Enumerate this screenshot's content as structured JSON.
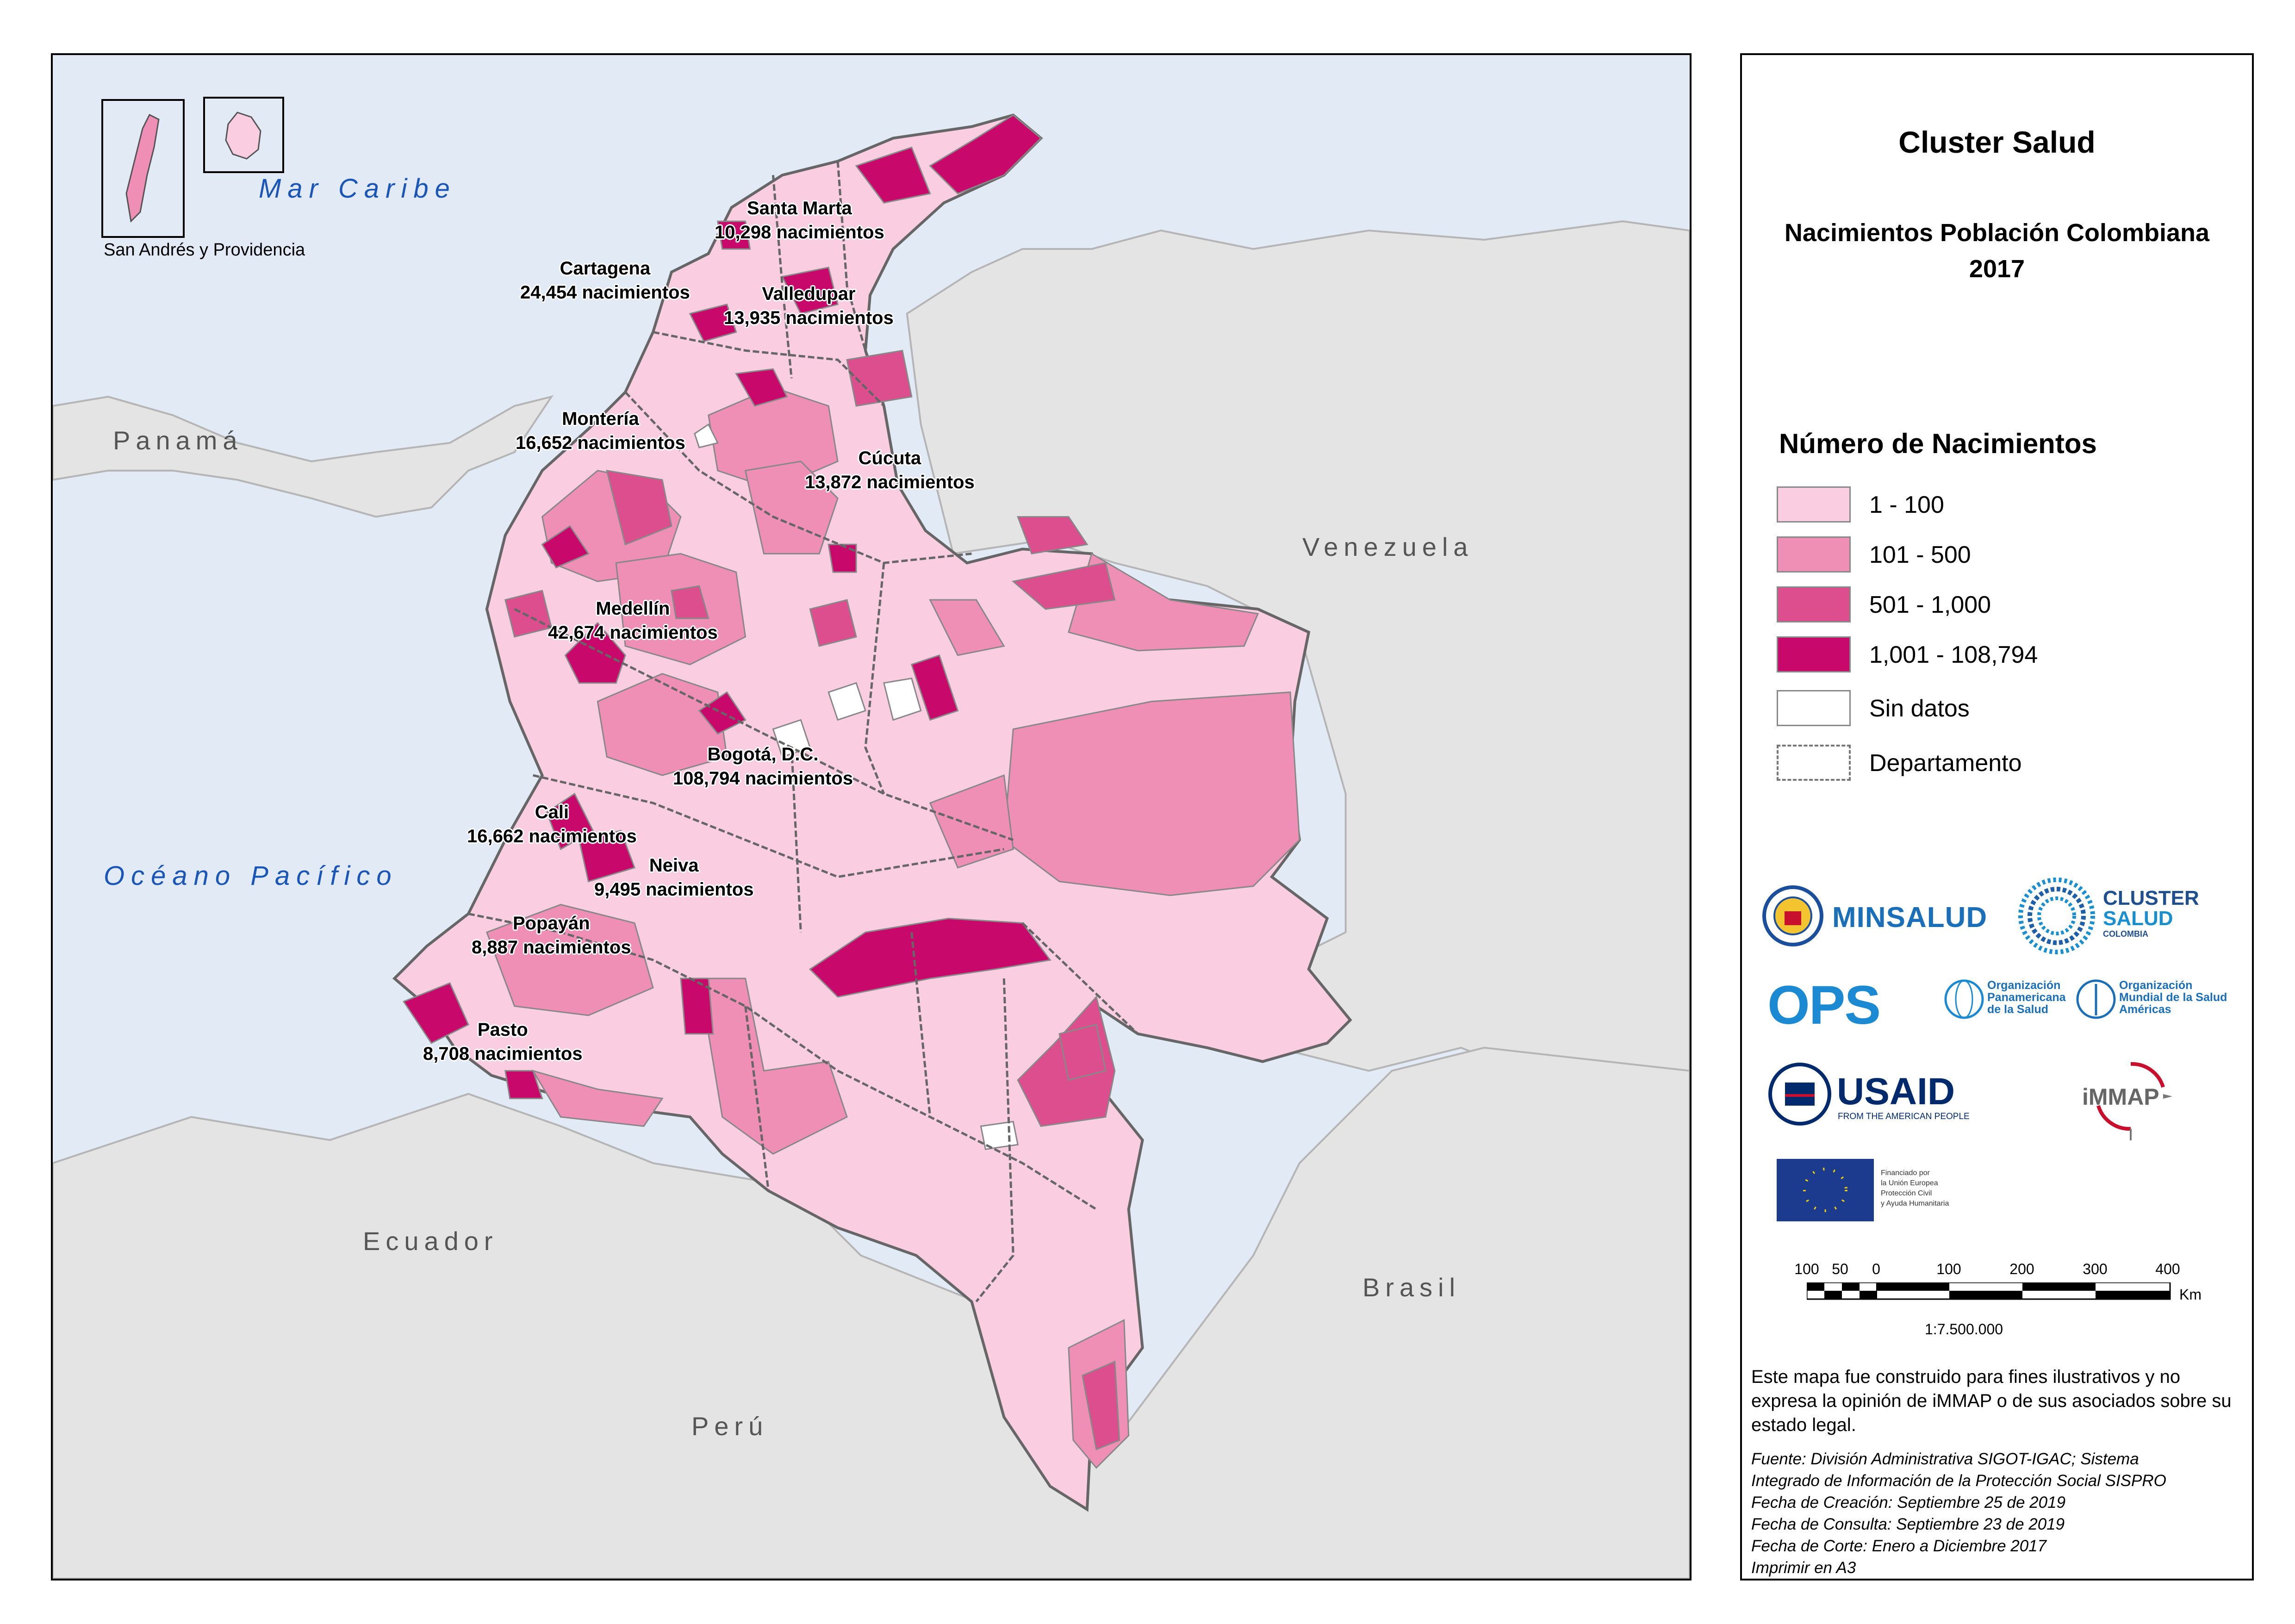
{
  "panel": {
    "title": "Cluster Salud",
    "subtitle_line1": "Nacimientos Población Colombiana",
    "subtitle_line2": "2017",
    "legend_title": "Número de Nacimientos",
    "legend": [
      {
        "label": "1 - 100",
        "color": "#fbcde0"
      },
      {
        "label": "101 - 500",
        "color": "#f08fb5"
      },
      {
        "label": "501 - 1,000",
        "color": "#dc4e8e"
      },
      {
        "label": "1,001 - 108,794",
        "color": "#c8086a"
      },
      {
        "label": "Sin datos",
        "color": "#ffffff"
      },
      {
        "label": "Departamento",
        "color": "#ffffff"
      }
    ],
    "scale": {
      "ticks": [
        "100",
        "50",
        "0",
        "100",
        "200",
        "300",
        "400"
      ],
      "unit": "Km",
      "ratio": "1:7.500.000"
    },
    "note": "Este mapa fue construido para fines ilustrativos y no expresa la opinión de iMMAP o de sus asociados sobre su estado legal.",
    "source_lines": [
      "Fuente: División Administrativa SIGOT-IGAC; Sistema",
      "Integrado de Información de la Protección Social SISPRO",
      "Fecha de Creación: Septiembre 25 de 2019",
      "Fecha de Consulta: Septiembre 23 de 2019",
      "Fecha de Corte: Enero a Diciembre 2017",
      "Imprimir en A3"
    ],
    "logos": {
      "minsalud": "MINSALUD",
      "cluster_1": "CLUSTER",
      "cluster_2": "SALUD",
      "cluster_3": "COLOMBIA",
      "ops": "OPS",
      "ops_org_1": "Organización",
      "ops_org_2": "Panamericana",
      "ops_org_3": "de la Salud",
      "oms_org_1": "Organización",
      "oms_org_2": "Mundial de la Salud",
      "oms_org_3": "Américas",
      "usaid": "USAID",
      "usaid_tag": "FROM THE AMERICAN PEOPLE",
      "immap": "iMMAP",
      "eu_1": "Financiado por",
      "eu_2": "la Unión Europea",
      "eu_3": "Protección Civil",
      "eu_4": "y Ayuda Humanitaria"
    }
  },
  "map": {
    "inset_label": "San  Andrés y Providencia",
    "seas": {
      "caribe": "Mar Caribe",
      "pacifico": "Océano Pacífico"
    },
    "countries": {
      "panama": "Panamá",
      "venezuela": "Venezuela",
      "ecuador": "Ecuador",
      "brasil": "Brasil",
      "peru": "Perú"
    },
    "cities": [
      {
        "name": "Santa Marta",
        "value": "10,298 nacimientos"
      },
      {
        "name": "Cartagena",
        "value": "24,454 nacimientos"
      },
      {
        "name": "Valledupar",
        "value": "13,935 nacimientos"
      },
      {
        "name": "Montería",
        "value": "16,652 nacimientos"
      },
      {
        "name": "Cúcuta",
        "value": "13,872 nacimientos"
      },
      {
        "name": "Medellín",
        "value": "42,674 nacimientos"
      },
      {
        "name": "Bogotá, D.C.",
        "value": "108,794 nacimientos"
      },
      {
        "name": "Cali",
        "value": "16,662 nacimientos"
      },
      {
        "name": "Neiva",
        "value": "9,495 nacimientos"
      },
      {
        "name": "Popayán",
        "value": "8,887 nacimientos"
      },
      {
        "name": "Pasto",
        "value": "8,708 nacimientos"
      }
    ],
    "colors": {
      "sea": "#e2eaf5",
      "land": "#e4e4e4",
      "border": "#666666"
    }
  }
}
